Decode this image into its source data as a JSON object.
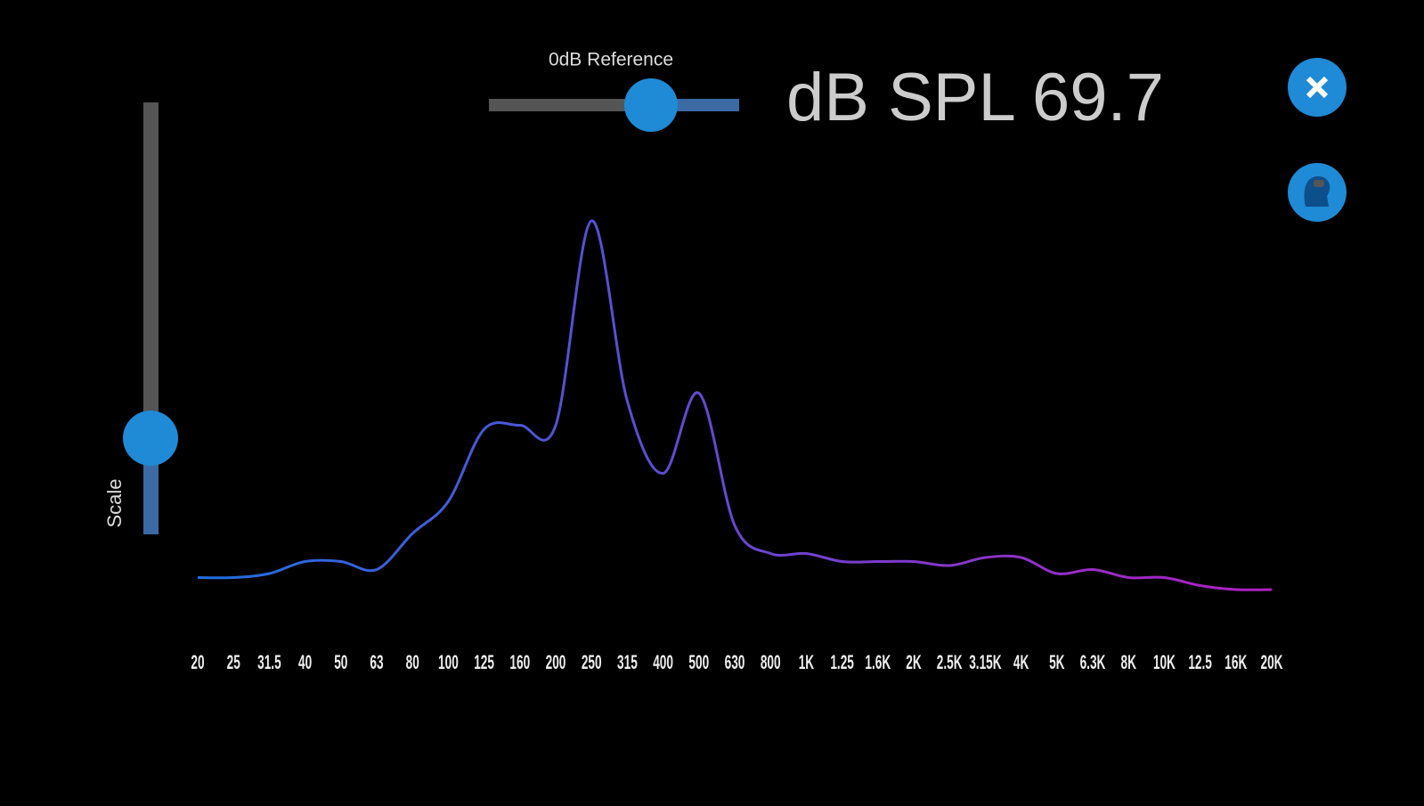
{
  "controls": {
    "reference_label": "0dB Reference",
    "spl_readout": "dB SPL 69.7",
    "scale_label": "Scale"
  },
  "chart_data": {
    "type": "line",
    "categories": [
      "20",
      "25",
      "31.5",
      "40",
      "50",
      "63",
      "80",
      "100",
      "125",
      "160",
      "200",
      "250",
      "315",
      "400",
      "500",
      "630",
      "800",
      "1K",
      "1.25",
      "1.6K",
      "2K",
      "2.5K",
      "3.15K",
      "4K",
      "5K",
      "6.3K",
      "8K",
      "10K",
      "12.5",
      "16K",
      "20K"
    ],
    "values": [
      7,
      7,
      8,
      11,
      11,
      9,
      18,
      26,
      44,
      45,
      45,
      96,
      51,
      33,
      53,
      20,
      13,
      13,
      11,
      11,
      11,
      10,
      12,
      12,
      8,
      9,
      7,
      7,
      5,
      4,
      4
    ],
    "ylim": [
      0,
      100
    ],
    "color": [
      "#1f6fe0",
      "#b01fc0"
    ]
  }
}
